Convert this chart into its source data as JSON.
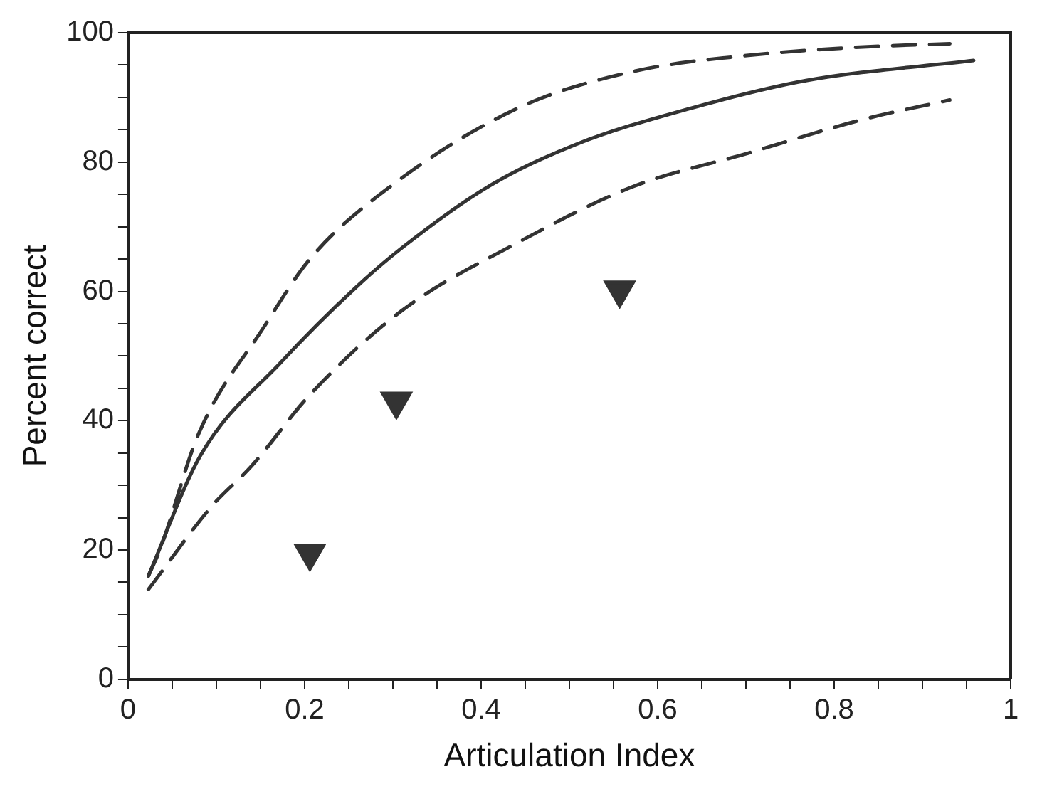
{
  "chart_data": {
    "type": "line",
    "xlabel": "Articulation Index",
    "ylabel": "Percent correct",
    "xlim": [
      0,
      1
    ],
    "ylim": [
      0,
      100
    ],
    "xticks": [
      0,
      {
        "value": 0.05,
        "label": null
      },
      {
        "value": 0.1,
        "label": null
      },
      {
        "value": 0.15,
        "label": null
      },
      0.2,
      {
        "value": 0.25,
        "label": null
      },
      {
        "value": 0.3,
        "label": null
      },
      {
        "value": 0.35,
        "label": null
      },
      0.4,
      {
        "value": 0.45,
        "label": null
      },
      {
        "value": 0.5,
        "label": null
      },
      {
        "value": 0.55,
        "label": null
      },
      0.6,
      {
        "value": 0.65,
        "label": null
      },
      {
        "value": 0.7,
        "label": null
      },
      {
        "value": 0.75,
        "label": null
      },
      0.8,
      {
        "value": 0.85,
        "label": null
      },
      {
        "value": 0.9,
        "label": null
      },
      {
        "value": 0.95,
        "label": null
      },
      1
    ],
    "yticks": [
      0,
      {
        "value": 5,
        "label": null
      },
      {
        "value": 10,
        "label": null
      },
      {
        "value": 15,
        "label": null
      },
      20,
      {
        "value": 25,
        "label": null
      },
      {
        "value": 30,
        "label": null
      },
      {
        "value": 35,
        "label": null
      },
      40,
      {
        "value": 45,
        "label": null
      },
      {
        "value": 50,
        "label": null
      },
      {
        "value": 55,
        "label": null
      },
      60,
      {
        "value": 65,
        "label": null
      },
      {
        "value": 70,
        "label": null
      },
      {
        "value": 75,
        "label": null
      },
      80,
      {
        "value": 85,
        "label": null
      },
      {
        "value": 90,
        "label": null
      },
      {
        "value": 95,
        "label": null
      },
      100
    ],
    "grid": false,
    "legend": false,
    "series": [
      {
        "color": "#333333",
        "line_style": "solid",
        "marker": "none",
        "x": [
          0.023,
          0.082,
          0.173,
          0.258,
          0.31,
          0.408,
          0.507,
          0.637,
          0.768,
          0.958
        ],
        "values": [
          16,
          34.6,
          49,
          60.6,
          66.7,
          76.2,
          82.7,
          88.3,
          92.6,
          95.7
        ]
      },
      {
        "color": "#333333",
        "line_style": "dashed",
        "marker": "none",
        "x": [
          0.023,
          0.036,
          0.08,
          0.154,
          0.206,
          0.297,
          0.441,
          0.572,
          0.703,
          0.833,
          0.931
        ],
        "values": [
          16,
          20,
          38,
          54.5,
          65,
          76.2,
          88.3,
          94,
          96.5,
          97.8,
          98.3
        ]
      },
      {
        "color": "#333333",
        "line_style": "dashed",
        "marker": "none",
        "x": [
          0.023,
          0.095,
          0.14,
          0.206,
          0.31,
          0.441,
          0.572,
          0.703,
          0.833,
          0.931
        ],
        "values": [
          13.9,
          26.8,
          33,
          44,
          57,
          67.5,
          76.2,
          81.4,
          86.6,
          89.6
        ]
      },
      {
        "type": "scatter",
        "color": "#333333",
        "marker": "triangle",
        "x": [
          0.206,
          0.304,
          0.557
        ],
        "values": [
          19.5,
          43,
          60.2
        ]
      }
    ]
  }
}
